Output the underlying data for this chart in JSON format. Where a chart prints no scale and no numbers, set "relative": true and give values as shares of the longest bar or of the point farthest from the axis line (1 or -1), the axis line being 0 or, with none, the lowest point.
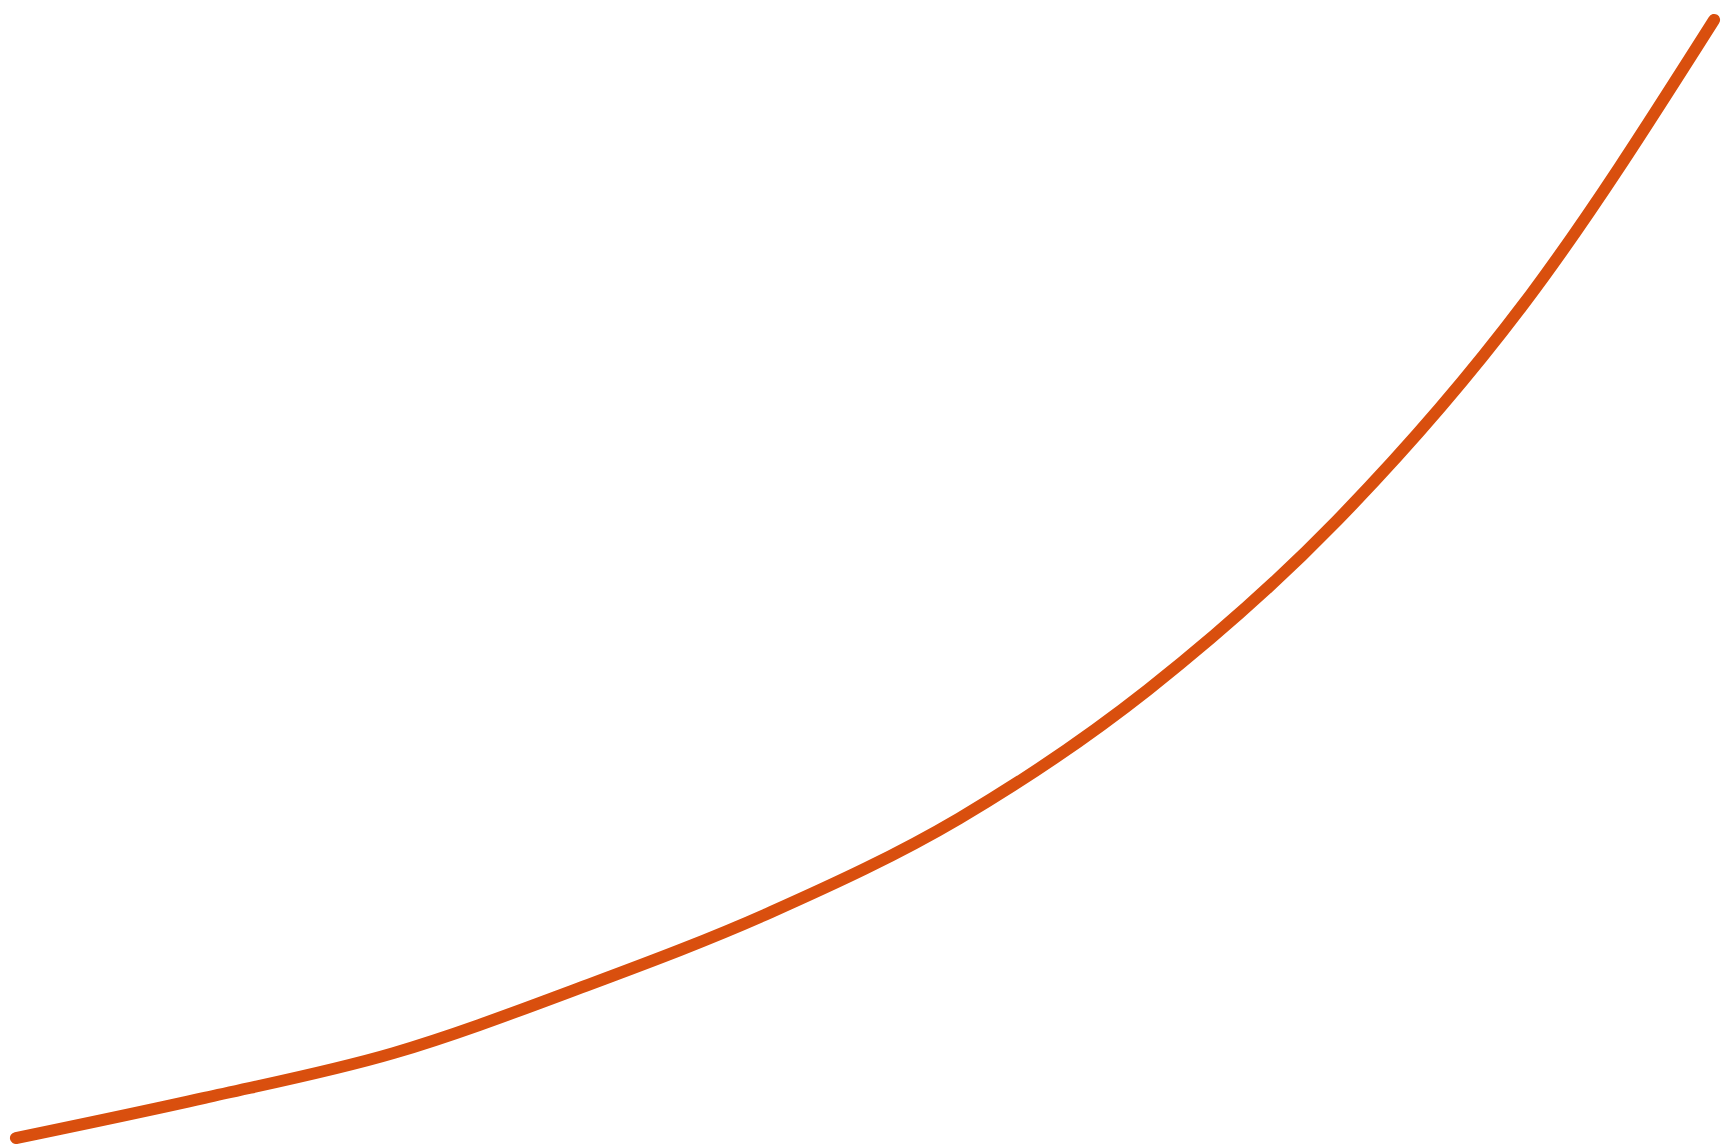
{
  "chart_data": {
    "type": "line",
    "relative": true,
    "categories": [
      null,
      null,
      null,
      null,
      null,
      null,
      null,
      null,
      null,
      null
    ],
    "values": [
      0,
      0.036,
      0.076,
      0.135,
      0.202,
      0.286,
      0.401,
      0.552,
      0.748,
      1
    ],
    "color": "#d94f0e"
  }
}
